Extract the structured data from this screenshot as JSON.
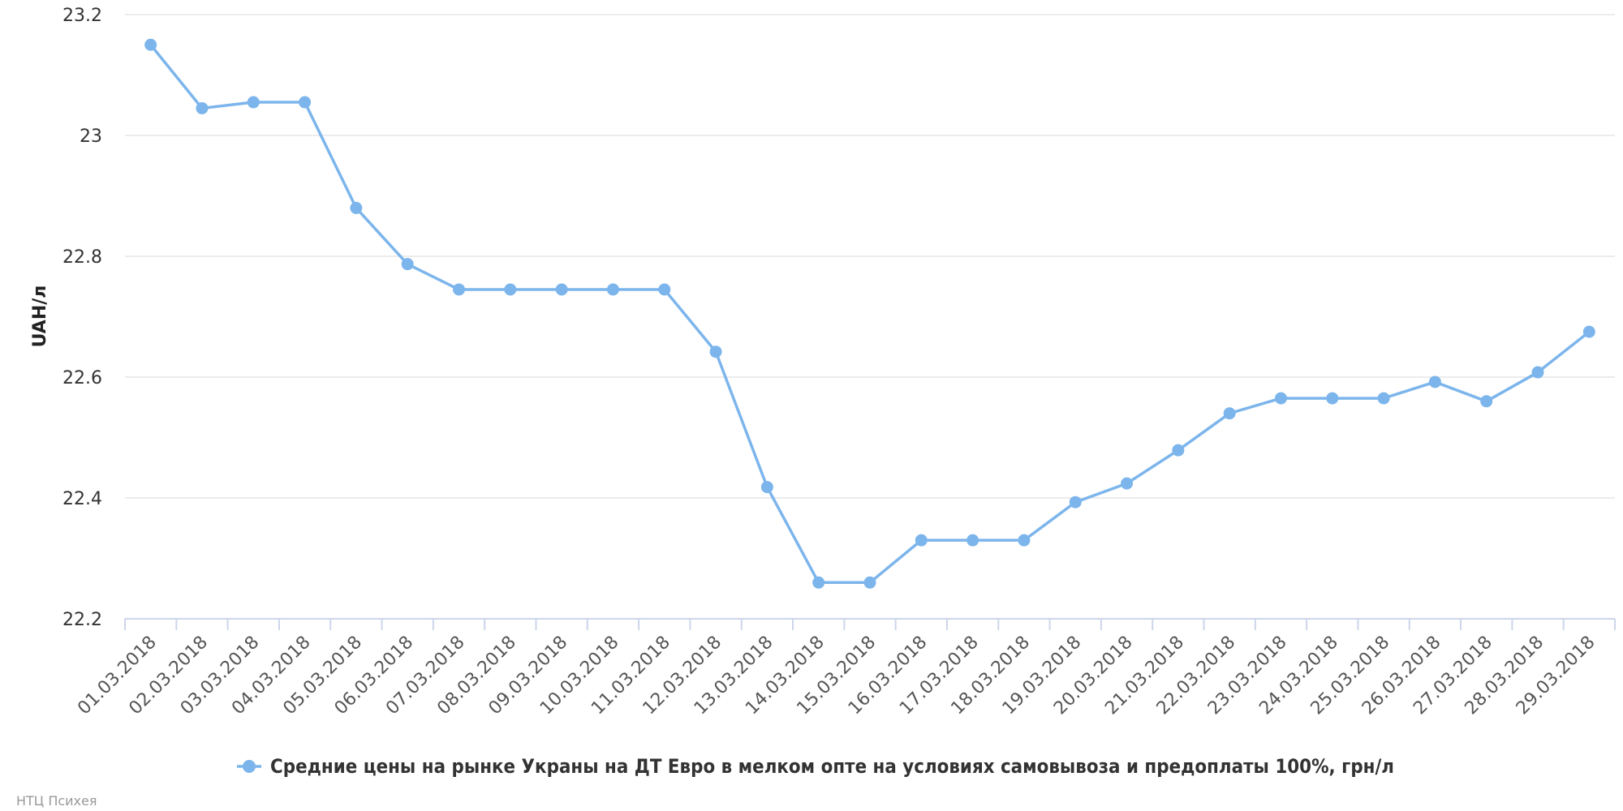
{
  "chart_data": {
    "type": "line",
    "title": "",
    "xlabel": "",
    "ylabel": "UAH/л",
    "ylim": [
      22.2,
      23.2
    ],
    "yticks": [
      "22.2",
      "22.4",
      "22.6",
      "22.8",
      "23",
      "23.2"
    ],
    "grid": true,
    "legend_position": "bottom-center",
    "colors": {
      "series": "#7cb5ec",
      "grid": "#e6e6e6",
      "axis": "#ccd6eb"
    },
    "categories": [
      "01.03.2018",
      "02.03.2018",
      "03.03.2018",
      "04.03.2018",
      "05.03.2018",
      "06.03.2018",
      "07.03.2018",
      "08.03.2018",
      "09.03.2018",
      "10.03.2018",
      "11.03.2018",
      "12.03.2018",
      "13.03.2018",
      "14.03.2018",
      "15.03.2018",
      "16.03.2018",
      "17.03.2018",
      "18.03.2018",
      "19.03.2018",
      "20.03.2018",
      "21.03.2018",
      "22.03.2018",
      "23.03.2018",
      "24.03.2018",
      "25.03.2018",
      "26.03.2018",
      "27.03.2018",
      "28.03.2018",
      "29.03.2018"
    ],
    "series": [
      {
        "name": "Средние цены на рынке Украны на ДТ Евро в мелком опте на условиях самовывоза и предоплаты 100%, грн/л",
        "values": [
          23.15,
          23.045,
          23.055,
          23.055,
          22.88,
          22.787,
          22.745,
          22.745,
          22.745,
          22.745,
          22.745,
          22.642,
          22.418,
          22.26,
          22.26,
          22.33,
          22.33,
          22.33,
          22.393,
          22.424,
          22.479,
          22.54,
          22.565,
          22.565,
          22.565,
          22.592,
          22.56,
          22.608,
          22.675
        ]
      }
    ]
  },
  "credit": "НТЦ Психея"
}
